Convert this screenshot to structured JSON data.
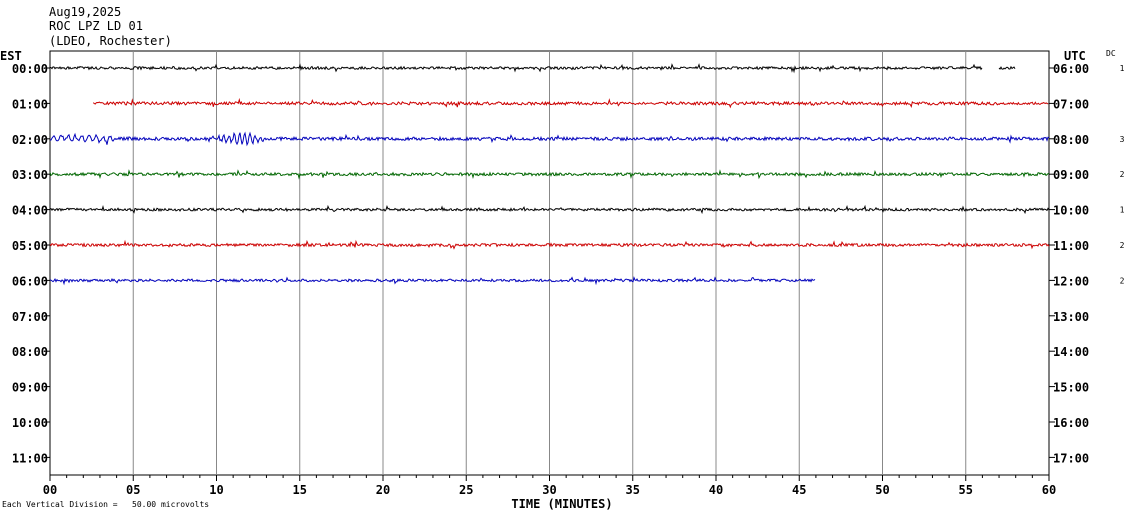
{
  "header": {
    "date": "Aug19,2025",
    "station": "ROC LPZ LD 01",
    "org": "(LDEO, Rochester)"
  },
  "left_axis_label": "EST",
  "right_axis_label": "UTC",
  "dc_label": "DC",
  "footer_note": "Each Vertical Division =   50.00 microvolts",
  "chart_data": {
    "type": "line",
    "xlabel": "TIME (MINUTES)",
    "xlim": [
      0,
      60
    ],
    "x_ticks": [
      "00",
      "05",
      "10",
      "15",
      "20",
      "25",
      "30",
      "35",
      "40",
      "45",
      "50",
      "55",
      "60"
    ],
    "left_ticks": [
      "00:00",
      "01:00",
      "02:00",
      "03:00",
      "04:00",
      "05:00",
      "06:00",
      "07:00",
      "08:00",
      "09:00",
      "10:00",
      "11:00"
    ],
    "right_ticks": [
      "06:00",
      "07:00",
      "08:00",
      "09:00",
      "10:00",
      "11:00",
      "12:00",
      "13:00",
      "14:00",
      "15:00",
      "16:00",
      "17:00"
    ],
    "grid": true,
    "series": [
      {
        "row": 0,
        "start_min": 0,
        "end_min": 56,
        "extra": [
          57,
          58
        ],
        "color": "#000000",
        "dc": "1",
        "amp": 1.3,
        "seed": 11
      },
      {
        "row": 1,
        "start_min": 2.6,
        "end_min": 60,
        "color": "#cc0000",
        "dc": "",
        "amp": 1.5,
        "seed": 23
      },
      {
        "row": 2,
        "start_min": 0,
        "end_min": 60,
        "color": "#0000bb",
        "dc": "3",
        "amp": 1.6,
        "seed": 37,
        "burst": [
          9.5,
          13.5
        ]
      },
      {
        "row": 3,
        "start_min": 0,
        "end_min": 60,
        "color": "#006600",
        "dc": "2",
        "amp": 1.4,
        "seed": 41
      },
      {
        "row": 4,
        "start_min": 0,
        "end_min": 60,
        "color": "#000000",
        "dc": "1",
        "amp": 1.3,
        "seed": 53
      },
      {
        "row": 5,
        "start_min": 0,
        "end_min": 60,
        "color": "#cc0000",
        "dc": "2",
        "amp": 1.4,
        "seed": 67
      },
      {
        "row": 6,
        "start_min": 0,
        "end_min": 46,
        "color": "#0000bb",
        "dc": "2",
        "amp": 1.3,
        "seed": 71
      }
    ]
  }
}
